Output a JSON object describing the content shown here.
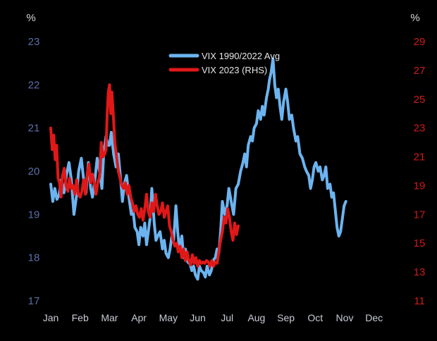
{
  "chart_data": {
    "type": "line",
    "left_unit": "%",
    "right_unit": "%",
    "x_labels": [
      "Jan",
      "Feb",
      "Mar",
      "Apr",
      "May",
      "Jun",
      "Jul",
      "Aug",
      "Sep",
      "Oct",
      "Nov",
      "Dec"
    ],
    "y_left": {
      "min": 17,
      "max": 23,
      "ticks": [
        17,
        18,
        19,
        20,
        21,
        22,
        23
      ]
    },
    "y_right": {
      "min": 11,
      "max": 29,
      "ticks": [
        11,
        13,
        15,
        17,
        19,
        21,
        23,
        25,
        27,
        29
      ]
    },
    "legend_position": "top-center",
    "series": [
      {
        "name": "VIX 1990/2022 Avg",
        "axis": "left",
        "color": "#6cb4f0",
        "points": [
          [
            0.0,
            19.7
          ],
          [
            0.07,
            19.3
          ],
          [
            0.14,
            19.6
          ],
          [
            0.21,
            19.35
          ],
          [
            0.28,
            19.45
          ],
          [
            0.36,
            19.8
          ],
          [
            0.45,
            19.5
          ],
          [
            0.53,
            19.9
          ],
          [
            0.62,
            20.2
          ],
          [
            0.7,
            19.8
          ],
          [
            0.79,
            19.0
          ],
          [
            0.87,
            19.4
          ],
          [
            0.95,
            20.0
          ],
          [
            1.04,
            20.3
          ],
          [
            1.12,
            19.8
          ],
          [
            1.2,
            19.5
          ],
          [
            1.28,
            20.2
          ],
          [
            1.36,
            19.6
          ],
          [
            1.42,
            19.4
          ],
          [
            1.5,
            19.8
          ],
          [
            1.58,
            20.3
          ],
          [
            1.66,
            20.0
          ],
          [
            1.74,
            19.6
          ],
          [
            1.8,
            20.4
          ],
          [
            1.88,
            20.8
          ],
          [
            1.95,
            20.6
          ],
          [
            2.0,
            20.6
          ],
          [
            2.06,
            20.9
          ],
          [
            2.14,
            20.4
          ],
          [
            2.22,
            20.1
          ],
          [
            2.3,
            20.4
          ],
          [
            2.38,
            19.8
          ],
          [
            2.44,
            19.3
          ],
          [
            2.5,
            19.7
          ],
          [
            2.58,
            19.9
          ],
          [
            2.66,
            19.4
          ],
          [
            2.74,
            19.0
          ],
          [
            2.8,
            19.1
          ],
          [
            2.86,
            18.7
          ],
          [
            2.94,
            18.6
          ],
          [
            3.0,
            18.3
          ],
          [
            3.06,
            18.7
          ],
          [
            3.14,
            18.5
          ],
          [
            3.2,
            18.8
          ],
          [
            3.26,
            18.3
          ],
          [
            3.32,
            18.6
          ],
          [
            3.38,
            18.9
          ],
          [
            3.44,
            19.6
          ],
          [
            3.52,
            18.8
          ],
          [
            3.58,
            18.4
          ],
          [
            3.64,
            18.5
          ],
          [
            3.72,
            18.6
          ],
          [
            3.8,
            18.2
          ],
          [
            3.86,
            18.4
          ],
          [
            3.92,
            18.1
          ],
          [
            4.0,
            18.0
          ],
          [
            4.06,
            18.2
          ],
          [
            4.12,
            18.5
          ],
          [
            4.18,
            18.4
          ],
          [
            4.26,
            19.2
          ],
          [
            4.32,
            18.6
          ],
          [
            4.38,
            18.2
          ],
          [
            4.46,
            18.5
          ],
          [
            4.52,
            18.0
          ],
          [
            4.58,
            18.2
          ],
          [
            4.66,
            17.9
          ],
          [
            4.74,
            17.85
          ],
          [
            4.8,
            17.7
          ],
          [
            4.86,
            17.8
          ],
          [
            4.92,
            17.6
          ],
          [
            5.0,
            17.5
          ],
          [
            5.06,
            17.8
          ],
          [
            5.12,
            17.7
          ],
          [
            5.2,
            17.65
          ],
          [
            5.26,
            17.55
          ],
          [
            5.32,
            17.8
          ],
          [
            5.4,
            17.6
          ],
          [
            5.46,
            17.7
          ],
          [
            5.54,
            17.95
          ],
          [
            5.6,
            18.0
          ],
          [
            5.66,
            18.2
          ],
          [
            5.72,
            18.1
          ],
          [
            5.78,
            18.6
          ],
          [
            5.84,
            19.3
          ],
          [
            5.92,
            19.0
          ],
          [
            6.0,
            19.2
          ],
          [
            6.06,
            19.6
          ],
          [
            6.14,
            19.3
          ],
          [
            6.22,
            19.0
          ],
          [
            6.3,
            19.6
          ],
          [
            6.38,
            19.7
          ],
          [
            6.46,
            20.0
          ],
          [
            6.54,
            20.2
          ],
          [
            6.6,
            20.4
          ],
          [
            6.66,
            20.1
          ],
          [
            6.72,
            20.6
          ],
          [
            6.8,
            20.8
          ],
          [
            6.86,
            20.7
          ],
          [
            6.92,
            21.0
          ],
          [
            7.0,
            21.1
          ],
          [
            7.06,
            21.4
          ],
          [
            7.14,
            21.2
          ],
          [
            7.2,
            21.5
          ],
          [
            7.26,
            21.3
          ],
          [
            7.34,
            21.7
          ],
          [
            7.4,
            21.9
          ],
          [
            7.44,
            22.1
          ],
          [
            7.5,
            22.3
          ],
          [
            7.56,
            22.6
          ],
          [
            7.62,
            22.0
          ],
          [
            7.68,
            21.7
          ],
          [
            7.74,
            21.9
          ],
          [
            7.8,
            21.5
          ],
          [
            7.86,
            21.2
          ],
          [
            7.92,
            21.6
          ],
          [
            8.0,
            21.9
          ],
          [
            8.06,
            21.6
          ],
          [
            8.12,
            21.2
          ],
          [
            8.2,
            21.3
          ],
          [
            8.26,
            21.0
          ],
          [
            8.34,
            20.7
          ],
          [
            8.4,
            20.8
          ],
          [
            8.48,
            20.4
          ],
          [
            8.56,
            20.3
          ],
          [
            8.64,
            20.1
          ],
          [
            8.7,
            20.0
          ],
          [
            8.78,
            19.9
          ],
          [
            8.84,
            19.6
          ],
          [
            8.9,
            19.8
          ],
          [
            8.96,
            20.1
          ],
          [
            9.02,
            20.2
          ],
          [
            9.1,
            20.0
          ],
          [
            9.16,
            20.1
          ],
          [
            9.24,
            19.8
          ],
          [
            9.3,
            19.9
          ],
          [
            9.36,
            20.1
          ],
          [
            9.42,
            19.6
          ],
          [
            9.5,
            19.7
          ],
          [
            9.56,
            19.4
          ],
          [
            9.62,
            19.5
          ],
          [
            9.68,
            19.1
          ],
          [
            9.74,
            18.7
          ],
          [
            9.8,
            18.5
          ],
          [
            9.86,
            18.6
          ],
          [
            9.92,
            18.9
          ],
          [
            9.98,
            19.2
          ],
          [
            10.04,
            19.3
          ]
        ]
      },
      {
        "name": "VIX 2023 (RHS)",
        "axis": "right",
        "color": "#e01818",
        "points": [
          [
            0.0,
            23.0
          ],
          [
            0.05,
            21.5
          ],
          [
            0.1,
            22.5
          ],
          [
            0.15,
            20.8
          ],
          [
            0.2,
            21.8
          ],
          [
            0.25,
            19.5
          ],
          [
            0.3,
            19.2
          ],
          [
            0.35,
            18.2
          ],
          [
            0.4,
            19.7
          ],
          [
            0.46,
            20.2
          ],
          [
            0.52,
            19.0
          ],
          [
            0.58,
            18.6
          ],
          [
            0.64,
            19.5
          ],
          [
            0.7,
            18.8
          ],
          [
            0.76,
            19.0
          ],
          [
            0.82,
            18.4
          ],
          [
            0.88,
            19.4
          ],
          [
            0.94,
            18.4
          ],
          [
            1.0,
            18.2
          ],
          [
            1.06,
            18.6
          ],
          [
            1.12,
            19.4
          ],
          [
            1.18,
            18.4
          ],
          [
            1.24,
            19.8
          ],
          [
            1.3,
            20.5
          ],
          [
            1.36,
            19.2
          ],
          [
            1.42,
            19.8
          ],
          [
            1.48,
            19.2
          ],
          [
            1.54,
            18.4
          ],
          [
            1.6,
            19.2
          ],
          [
            1.66,
            19.6
          ],
          [
            1.72,
            22.0
          ],
          [
            1.78,
            21.0
          ],
          [
            1.84,
            21.2
          ],
          [
            1.88,
            21.5
          ],
          [
            1.92,
            24.0
          ],
          [
            1.96,
            25.5
          ],
          [
            2.0,
            26.0
          ],
          [
            2.04,
            24.0
          ],
          [
            2.08,
            25.5
          ],
          [
            2.12,
            24.2
          ],
          [
            2.18,
            22.0
          ],
          [
            2.24,
            21.0
          ],
          [
            2.3,
            20.0
          ],
          [
            2.36,
            19.5
          ],
          [
            2.42,
            19.0
          ],
          [
            2.48,
            18.8
          ],
          [
            2.54,
            19.2
          ],
          [
            2.6,
            18.4
          ],
          [
            2.66,
            19.0
          ],
          [
            2.72,
            18.2
          ],
          [
            2.78,
            17.8
          ],
          [
            2.84,
            17.2
          ],
          [
            2.9,
            17.6
          ],
          [
            2.96,
            17.0
          ],
          [
            3.02,
            16.8
          ],
          [
            3.08,
            17.4
          ],
          [
            3.14,
            16.6
          ],
          [
            3.2,
            17.4
          ],
          [
            3.26,
            18.4
          ],
          [
            3.32,
            17.2
          ],
          [
            3.38,
            16.8
          ],
          [
            3.44,
            17.8
          ],
          [
            3.5,
            17.2
          ],
          [
            3.56,
            18.4
          ],
          [
            3.62,
            17.6
          ],
          [
            3.68,
            17.0
          ],
          [
            3.74,
            17.2
          ],
          [
            3.8,
            17.8
          ],
          [
            3.86,
            16.8
          ],
          [
            3.92,
            17.2
          ],
          [
            3.98,
            17.6
          ],
          [
            4.04,
            16.2
          ],
          [
            4.1,
            15.8
          ],
          [
            4.16,
            15.2
          ],
          [
            4.22,
            14.8
          ],
          [
            4.28,
            15.0
          ],
          [
            4.34,
            14.4
          ],
          [
            4.4,
            14.8
          ],
          [
            4.46,
            14.0
          ],
          [
            4.52,
            14.6
          ],
          [
            4.58,
            13.8
          ],
          [
            4.64,
            14.4
          ],
          [
            4.7,
            13.8
          ],
          [
            4.76,
            13.5
          ],
          [
            4.82,
            14.2
          ],
          [
            4.88,
            13.6
          ],
          [
            4.94,
            14.0
          ],
          [
            5.0,
            13.4
          ],
          [
            5.06,
            13.8
          ],
          [
            5.12,
            13.6
          ],
          [
            5.18,
            13.7
          ],
          [
            5.24,
            13.6
          ],
          [
            5.3,
            13.8
          ],
          [
            5.36,
            13.7
          ],
          [
            5.42,
            13.4
          ],
          [
            5.48,
            13.8
          ],
          [
            5.54,
            13.4
          ],
          [
            5.6,
            13.7
          ],
          [
            5.66,
            13.6
          ],
          [
            5.72,
            14.4
          ],
          [
            5.78,
            15.2
          ],
          [
            5.84,
            15.8
          ],
          [
            5.9,
            16.8
          ],
          [
            5.96,
            16.4
          ],
          [
            6.02,
            17.4
          ],
          [
            6.08,
            16.8
          ],
          [
            6.14,
            15.8
          ],
          [
            6.2,
            15.2
          ],
          [
            6.26,
            16.4
          ],
          [
            6.32,
            15.6
          ],
          [
            6.38,
            16.2
          ]
        ]
      }
    ]
  }
}
